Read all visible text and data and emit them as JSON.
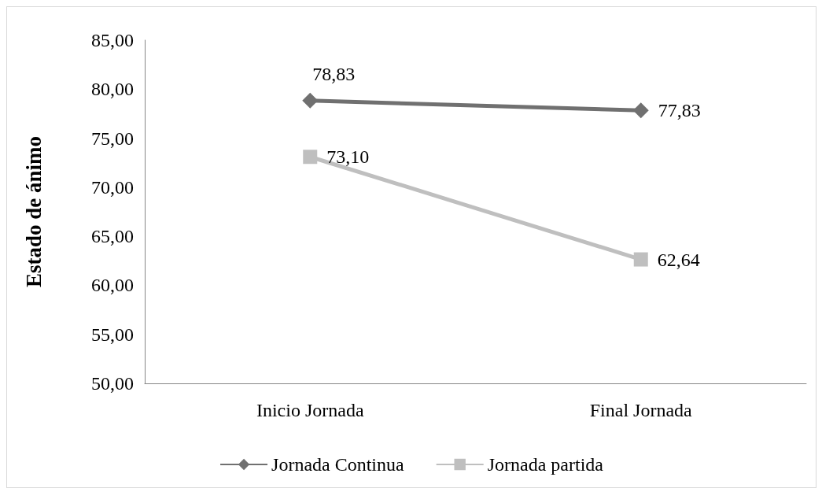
{
  "chart_data": {
    "type": "line",
    "ylabel": "Estado de ánimo",
    "categories": [
      "Inicio Jornada",
      "Final Jornada"
    ],
    "series": [
      {
        "name": "Jornada Continua",
        "color": "#707070",
        "marker": "diamond",
        "values": [
          78.83,
          77.83
        ],
        "value_labels": [
          "78,83",
          "77,83"
        ]
      },
      {
        "name": "Jornada partida",
        "color": "#bfbfbf",
        "marker": "square",
        "values": [
          73.1,
          62.64
        ],
        "value_labels": [
          "73,10",
          "62,64"
        ]
      }
    ],
    "ylim": [
      50,
      85
    ],
    "yticks": [
      {
        "value": 50,
        "label": "50,00"
      },
      {
        "value": 55,
        "label": "55,00"
      },
      {
        "value": 60,
        "label": "60,00"
      },
      {
        "value": 65,
        "label": "65,00"
      },
      {
        "value": 70,
        "label": "70,00"
      },
      {
        "value": 75,
        "label": "75,00"
      },
      {
        "value": 80,
        "label": "80,00"
      },
      {
        "value": 85,
        "label": "85,00"
      }
    ],
    "grid": false,
    "legend": "bottom",
    "line_style": "solid"
  }
}
